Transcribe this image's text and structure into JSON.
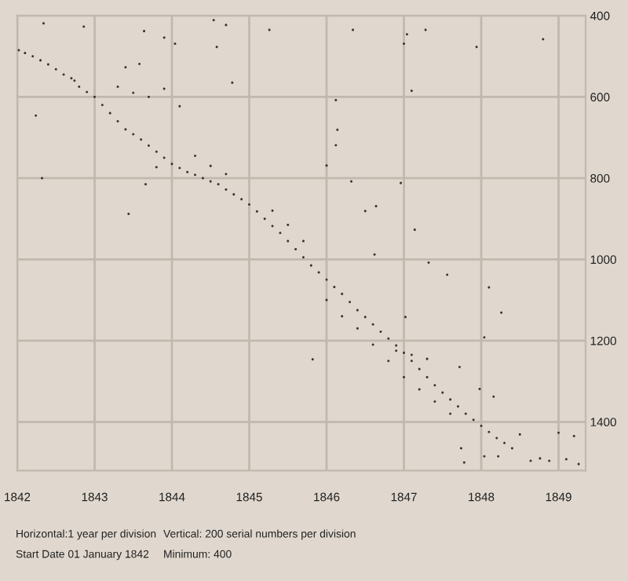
{
  "chart_data": {
    "type": "scatter",
    "xlim": [
      1842,
      1849.35
    ],
    "ylim": [
      1520,
      400
    ],
    "xticks": [
      1842,
      1843,
      1844,
      1845,
      1846,
      1847,
      1848,
      1849
    ],
    "yticks": [
      400,
      600,
      800,
      1000,
      1200,
      1400
    ],
    "grid": true,
    "marker": "circle",
    "series": [
      {
        "color": "#3a3430",
        "x": [
          1842.02,
          1842.1,
          1842.2,
          1842.3,
          1842.4,
          1842.5,
          1842.6,
          1842.7,
          1842.74,
          1842.8,
          1842.9,
          1843.0,
          1843.1,
          1843.2,
          1843.3,
          1843.4,
          1843.5,
          1843.6,
          1843.7,
          1843.8,
          1843.9,
          1844.0,
          1844.1,
          1844.2,
          1844.3,
          1844.4,
          1844.5,
          1844.6,
          1844.7,
          1844.8,
          1844.9,
          1845.0,
          1845.1,
          1845.2,
          1845.3,
          1845.4,
          1845.5,
          1845.6,
          1845.7,
          1845.8,
          1845.9,
          1846.0,
          1846.1,
          1846.2,
          1846.3,
          1846.4,
          1846.5,
          1846.6,
          1846.7,
          1846.8,
          1846.9,
          1847.0,
          1847.1,
          1847.2,
          1847.3,
          1847.4,
          1847.5,
          1847.6,
          1847.7,
          1847.8,
          1847.9,
          1848.0,
          1848.1,
          1848.2,
          1848.3,
          1848.4,
          1843.3,
          1843.5,
          1843.7,
          1843.9,
          1844.3,
          1844.5,
          1844.7,
          1845.3,
          1845.5,
          1845.7,
          1846.0,
          1846.2,
          1846.4,
          1846.6,
          1846.8,
          1847.0,
          1847.2,
          1847.4,
          1847.6,
          1846.9,
          1847.1,
          1847.3,
          1842.34,
          1842.86,
          1843.64,
          1844.54,
          1844.7,
          1844.58,
          1845.26,
          1842.24,
          1842.32,
          1843.44,
          1843.66,
          1843.8,
          1844.78,
          1844.1,
          1843.4,
          1843.58,
          1843.9,
          1844.04,
          1846.34,
          1847.04,
          1847.0,
          1847.28,
          1847.94,
          1848.8,
          1847.1,
          1846.12,
          1846.14,
          1846.12,
          1846.0,
          1846.32,
          1846.96,
          1847.14,
          1847.32,
          1846.5,
          1846.64,
          1846.62,
          1847.56,
          1848.1,
          1848.26,
          1848.04,
          1847.72,
          1848.16,
          1849.0,
          1849.2,
          1849.1,
          1849.26,
          1848.64,
          1848.76,
          1848.88,
          1847.78,
          1847.74,
          1847.98,
          1848.5,
          1848.22,
          1848.04,
          1845.82,
          1847.02
        ],
        "values": [
          485,
          492,
          500,
          510,
          520,
          532,
          545,
          554,
          560,
          575,
          588,
          600,
          620,
          640,
          660,
          680,
          692,
          705,
          720,
          735,
          750,
          765,
          775,
          785,
          792,
          800,
          808,
          815,
          828,
          840,
          852,
          865,
          882,
          900,
          918,
          935,
          955,
          975,
          995,
          1015,
          1032,
          1050,
          1068,
          1085,
          1105,
          1125,
          1142,
          1160,
          1178,
          1195,
          1212,
          1230,
          1250,
          1270,
          1290,
          1310,
          1328,
          1345,
          1362,
          1380,
          1395,
          1410,
          1425,
          1440,
          1452,
          1465,
          575,
          590,
          600,
          580,
          745,
          770,
          790,
          880,
          915,
          955,
          1100,
          1140,
          1170,
          1210,
          1250,
          1290,
          1320,
          1350,
          1380,
          1225,
          1235,
          1245,
          419,
          427,
          438,
          411,
          423,
          477,
          435,
          646,
          800,
          888,
          815,
          773,
          565,
          623,
          527,
          519,
          454,
          469,
          435,
          446,
          469,
          435,
          477,
          458,
          585,
          608,
          681,
          719,
          769,
          808,
          812,
          927,
          1008,
          881,
          869,
          988,
          1038,
          1069,
          1131,
          1192,
          1265,
          1338,
          1427,
          1435,
          1492,
          1504,
          1496,
          1490,
          1496,
          1500,
          1465,
          1319,
          1431,
          1485,
          1485,
          1246,
          1142
        ]
      }
    ],
    "annotations": [
      "Horizontal:1 year per division",
      "Vertical: 200 serial numbers per division",
      "Start Date 01 January 1842",
      "Minimum: 400"
    ]
  }
}
